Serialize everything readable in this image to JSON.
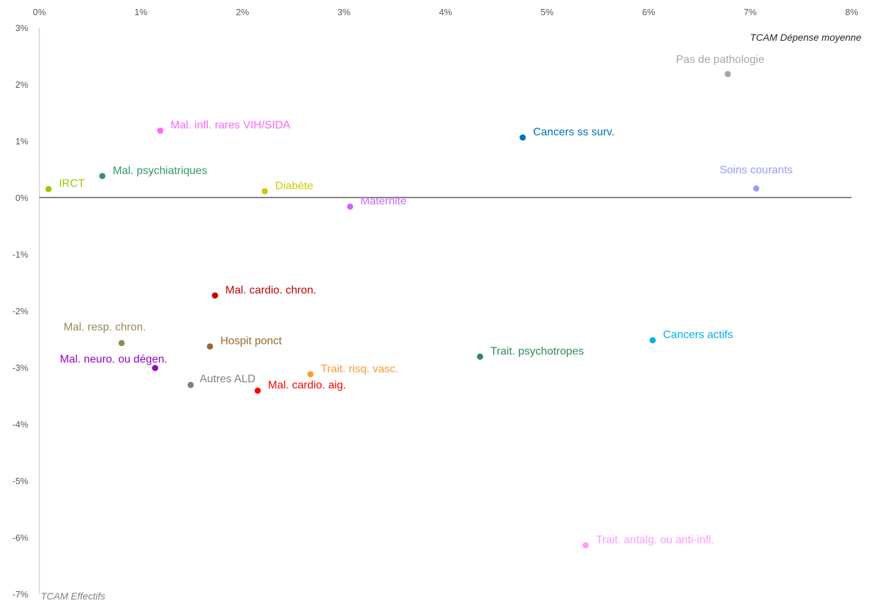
{
  "chart_data": {
    "type": "scatter",
    "title": "",
    "xlabel": "TCAM Effectifs",
    "ylabel": "TCAM Dépense moyenne",
    "xlim": [
      0,
      8
    ],
    "ylim": [
      -7,
      3
    ],
    "x_ticks": [
      "0%",
      "1%",
      "2%",
      "3%",
      "4%",
      "5%",
      "6%",
      "7%",
      "8%"
    ],
    "y_ticks": [
      "3%",
      "2%",
      "1%",
      "0%",
      "-1%",
      "-2%",
      "-3%",
      "-4%",
      "-5%",
      "-6%",
      "-7%"
    ],
    "grid": false,
    "legend": "none",
    "points": [
      {
        "label": "Pas de pathologie",
        "x": 6.78,
        "y": 2.18,
        "color": "#a6a6a6"
      },
      {
        "label": "Mal. infl. rares VIH/SIDA",
        "x": 1.19,
        "y": 1.18,
        "color": "#ff66ff"
      },
      {
        "label": "Cancers ss surv.",
        "x": 4.76,
        "y": 1.06,
        "color": "#0070c0"
      },
      {
        "label": "IRCT",
        "x": 0.09,
        "y": 0.15,
        "color": "#99cc00"
      },
      {
        "label": "Mal. psychiatriques",
        "x": 0.62,
        "y": 0.38,
        "color": "#339966"
      },
      {
        "label": "Diabète",
        "x": 2.22,
        "y": 0.11,
        "color": "#cccc00"
      },
      {
        "label": "Soins courants",
        "x": 7.06,
        "y": 0.16,
        "color": "#9999ff"
      },
      {
        "label": "Maternité",
        "x": 3.06,
        "y": -0.16,
        "color": "#cc66ff"
      },
      {
        "label": "Mal. cardio. chron.",
        "x": 1.73,
        "y": -1.73,
        "color": "#c00000"
      },
      {
        "label": "Mal. resp. chron.",
        "x": 0.81,
        "y": -2.57,
        "color": "#948a54"
      },
      {
        "label": "Hospit ponct",
        "x": 1.68,
        "y": -2.63,
        "color": "#996633"
      },
      {
        "label": "Cancers actifs",
        "x": 6.04,
        "y": -2.52,
        "color": "#00b0f0"
      },
      {
        "label": "Trait. psychotropes",
        "x": 4.34,
        "y": -2.81,
        "color": "#2e8b57"
      },
      {
        "label": "Mal. neuro. ou dégen.",
        "x": 1.14,
        "y": -3.01,
        "color": "#9900cc"
      },
      {
        "label": "Trait. risq. vasc.",
        "x": 2.67,
        "y": -3.12,
        "color": "#ff9933"
      },
      {
        "label": "Autres ALD",
        "x": 1.49,
        "y": -3.31,
        "color": "#7f7f7f"
      },
      {
        "label": "Mal. cardio. aig.",
        "x": 2.15,
        "y": -3.41,
        "color": "#ff0000"
      },
      {
        "label": "Trait. antalg. ou anti-infl.",
        "x": 5.38,
        "y": -6.14,
        "color": "#ff99ff"
      }
    ]
  }
}
